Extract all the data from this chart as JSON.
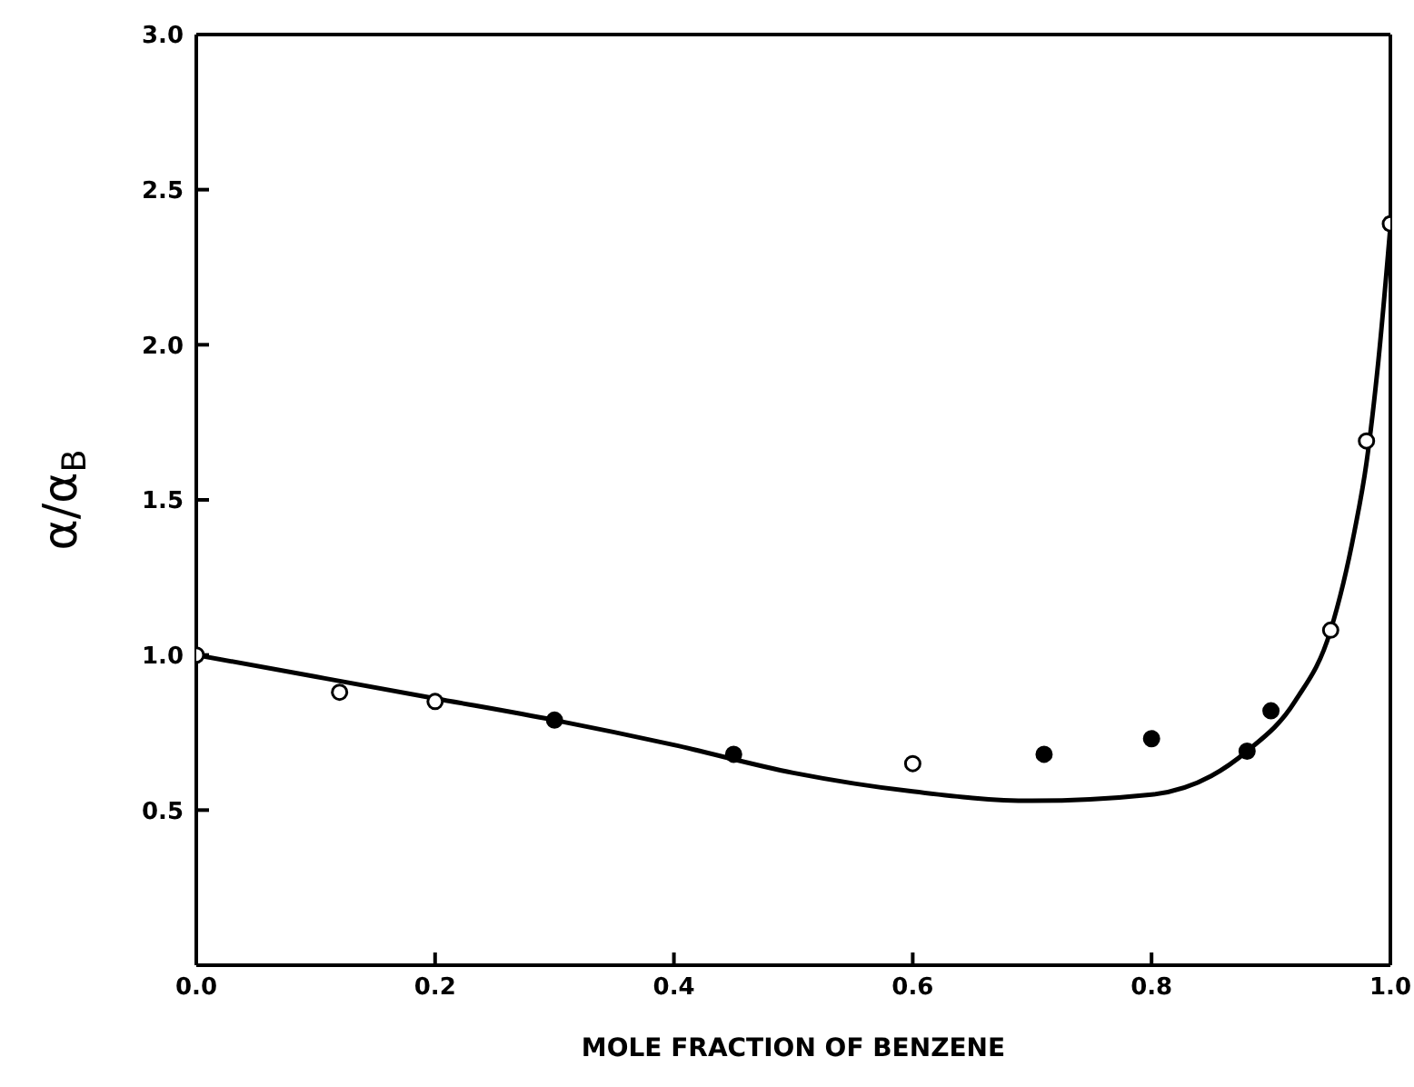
{
  "chart_data": {
    "type": "scatter",
    "xlabel": "MOLE FRACTION OF BENZENE",
    "ylabel": "α/α$_{B}$",
    "xlim": [
      0,
      1.0
    ],
    "ylim": [
      0,
      3.0
    ],
    "xticks": [
      {
        "value": 0,
        "label": "0.0"
      },
      {
        "value": 0.2,
        "label": "0.2"
      },
      {
        "value": 0.4,
        "label": "0.4"
      },
      {
        "value": 0.6,
        "label": "0.6"
      },
      {
        "value": 0.8,
        "label": "0.8"
      },
      {
        "value": 1.0,
        "label": "1.0"
      }
    ],
    "yticks": [
      {
        "value": 0.5,
        "label": "0.5"
      },
      {
        "value": 1.0,
        "label": "1.0"
      },
      {
        "value": 1.5,
        "label": "1.5"
      },
      {
        "value": 2.0,
        "label": "2.0"
      },
      {
        "value": 2.5,
        "label": "2.5"
      },
      {
        "value": 3.0,
        "label": "3.0"
      }
    ],
    "grid": false,
    "legend": false,
    "series": [
      {
        "marker": "circle",
        "color": "#000000",
        "x": [
          0.0,
          0.12,
          0.2,
          0.6,
          0.95,
          0.98,
          1.0
        ],
        "values": [
          1.0,
          0.88,
          0.85,
          0.65,
          1.08,
          1.69,
          2.39
        ]
      },
      {
        "marker": "circle",
        "color": "#000000",
        "x": [
          0.3,
          0.45,
          0.71,
          0.8,
          0.88,
          0.9
        ],
        "values": [
          0.79,
          0.68,
          0.68,
          0.73,
          0.69,
          0.82
        ]
      },
      {
        "type": "line",
        "color": "#000000",
        "line_style": "solid",
        "x": [
          0.0,
          0.1,
          0.2,
          0.3,
          0.4,
          0.5,
          0.6,
          0.7,
          0.8,
          0.85,
          0.88,
          0.92,
          0.95,
          0.97,
          0.98,
          0.99,
          1.0
        ],
        "values": [
          1.0,
          0.93,
          0.86,
          0.79,
          0.71,
          0.62,
          0.56,
          0.53,
          0.55,
          0.61,
          0.69,
          0.85,
          1.08,
          1.4,
          1.62,
          1.95,
          2.38
        ]
      }
    ]
  }
}
